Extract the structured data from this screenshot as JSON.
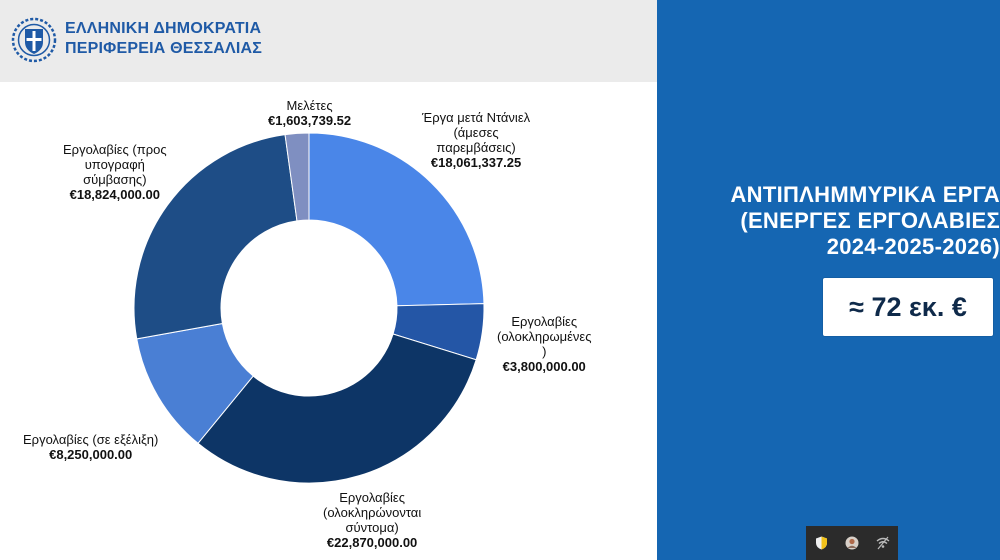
{
  "header": {
    "org_line1": "ΕΛΛΗΝΙΚΗ ΔΗΜΟΚΡΑΤΙΑ",
    "org_line2": "ΠΕΡΙΦΕΡΕΙΑ ΘΕΣΣΑΛΙΑΣ",
    "logo_icon": "greek-coat-of-arms-icon"
  },
  "panel": {
    "title_line1": "ΑΝΤΙΠΛΗΜΜΥΡΙΚΑ ΕΡΓΑ",
    "title_line2": "(ΕΝΕΡΓΕΣ ΕΡΓΟΛΑΒΙΕΣ",
    "title_line3": "2024-2025-2026)",
    "total": "≈ 72 εκ. €",
    "background_color": "#1566b2"
  },
  "taskbar": {
    "icons": [
      "shield-icon",
      "user-avatar-icon",
      "network-disconnected-icon"
    ]
  },
  "chart_data": {
    "type": "pie",
    "donut": true,
    "slices": [
      {
        "name": "Έργα μετά Ντάνιελ (άμεσες παρεμβάσεις)",
        "name_lines": [
          "Έργα μετά Ντάνιελ",
          "(άμεσες",
          "παρεμβάσεις)"
        ],
        "value": 18061337.25,
        "label": "€18,061,337.25",
        "color": "#4a86e8"
      },
      {
        "name": "Εργολαβίες (ολοκληρωμένες)",
        "name_lines": [
          "Εργολαβίες",
          "(ολοκληρωμένες",
          ")"
        ],
        "value": 3800000.0,
        "label": "€3,800,000.00",
        "color": "#2456a6"
      },
      {
        "name": "Εργολαβίες (ολοκληρώνονται σύντομα)",
        "name_lines": [
          "Εργολαβίες",
          "(ολοκληρώνονται",
          "σύντομα)"
        ],
        "value": 22870000.0,
        "label": "€22,870,000.00",
        "color": "#0d3566"
      },
      {
        "name": "Εργολαβίες (σε εξέλιξη)",
        "name_lines": [
          "Εργολαβίες (σε εξέλιξη)"
        ],
        "value": 8250000.0,
        "label": "€8,250,000.00",
        "color": "#4a7fd4"
      },
      {
        "name": "Εργολαβίες (προς υπογραφή σύμβασης)",
        "name_lines": [
          "Εργολαβίες (προς",
          "υπογραφή",
          "σύμβασης)"
        ],
        "value": 18824000.0,
        "label": "€18,824,000.00",
        "color": "#1e4d86"
      },
      {
        "name": "Μελέτες",
        "name_lines": [
          "Μελέτες"
        ],
        "value": 1603739.52,
        "label": "€1,603,739.52",
        "color": "#7f8fc1"
      }
    ]
  }
}
